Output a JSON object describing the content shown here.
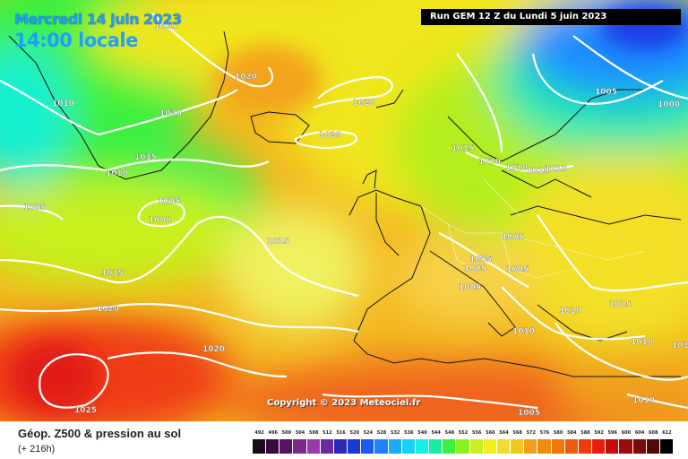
{
  "header": {
    "date_title": "Mercredi 14 juin 2023",
    "time_title": "14:00 locale",
    "run_info": "Run GEM 12 Z du Lundi 5 juin 2023"
  },
  "map": {
    "copyright": "Copyright © 2023 Meteociel.fr",
    "isobar_labels": [
      "1025",
      "1020",
      "1010",
      "1020",
      "1020",
      "1020",
      "1005",
      "1000",
      "1015",
      "1010",
      "1005",
      "1000",
      "1005",
      "1015",
      "1015",
      "1010",
      "1010",
      "1010",
      "1010",
      "1005",
      "1005",
      "1005",
      "1005",
      "1005",
      "1020",
      "1020",
      "1010",
      "1010",
      "1015",
      "1010",
      "1015",
      "1010",
      "1010",
      "1005",
      "1025"
    ]
  },
  "footer": {
    "product_title": "Géop. Z500 & pression au sol",
    "forecast_step": "(+ 216h)"
  },
  "legend": {
    "unit_values": [
      "492",
      "496",
      "500",
      "504",
      "508",
      "512",
      "516",
      "520",
      "524",
      "528",
      "532",
      "536",
      "540",
      "544",
      "548",
      "552",
      "556",
      "560",
      "564",
      "568",
      "572",
      "576",
      "580",
      "584",
      "588",
      "592",
      "596",
      "600",
      "604",
      "608",
      "612"
    ],
    "colors": [
      "#1a0a1e",
      "#3c0a3c",
      "#5a1464",
      "#7a2a8a",
      "#9a3aa8",
      "#6a2aa0",
      "#2a2ab4",
      "#1a3ad8",
      "#1e5af0",
      "#1e82ff",
      "#1eaaff",
      "#14d2ff",
      "#14f0e6",
      "#14f0a0",
      "#3cf03c",
      "#8cf01e",
      "#c8f01e",
      "#f0f01e",
      "#f0dc32",
      "#f0c81e",
      "#f0a01e",
      "#f08c14",
      "#f0780a",
      "#f05a0a",
      "#f03c0a",
      "#e61e0a",
      "#c80a0a",
      "#a00a0a",
      "#780a0a",
      "#500a0a",
      "#000000"
    ]
  }
}
